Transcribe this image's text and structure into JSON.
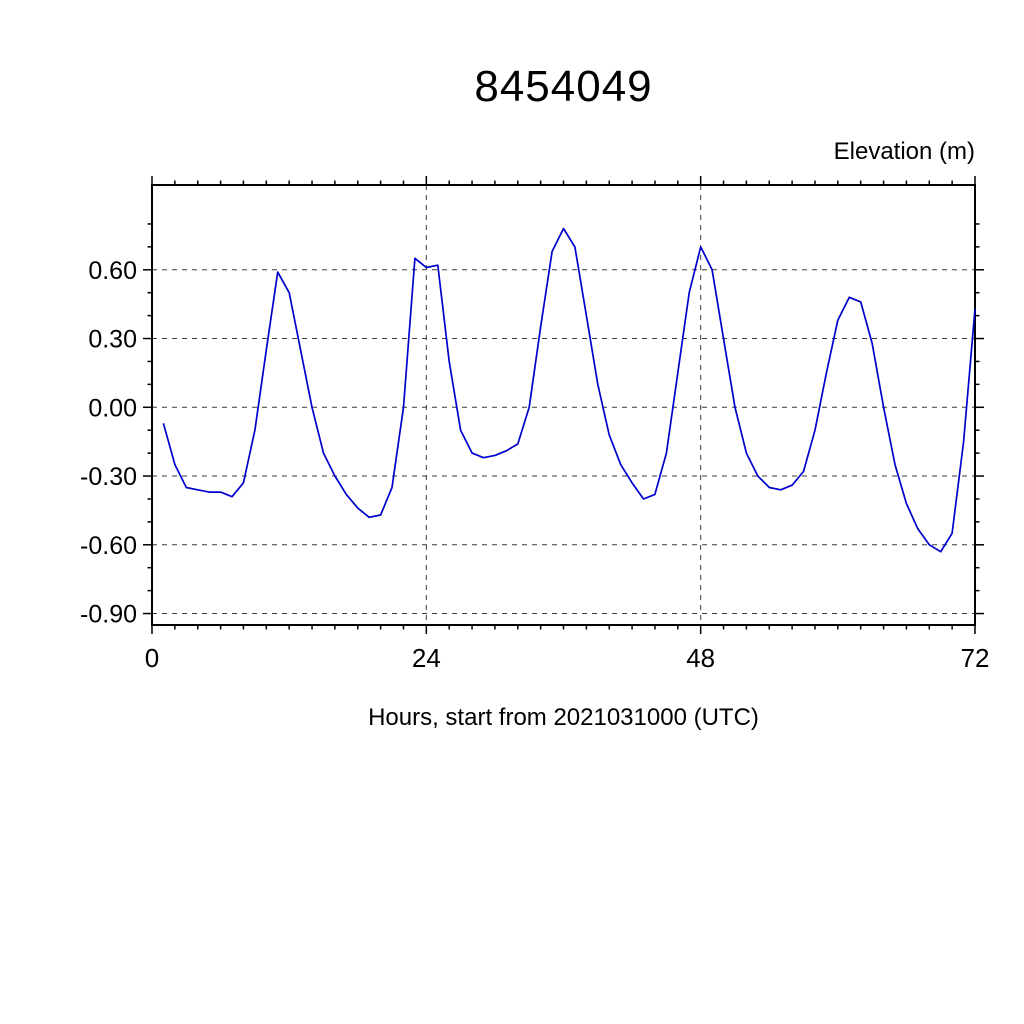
{
  "chart_data": {
    "type": "line",
    "title": "8454049",
    "right_label": "Elevation (m)",
    "xlabel": "Hours, start from 2021031000 (UTC)",
    "line_color": "#0000cd",
    "grid": true,
    "legend": null,
    "xlim": [
      0,
      72
    ],
    "ylim": [
      -0.95,
      0.97
    ],
    "xaxis": {
      "ticks": [
        0,
        24,
        48,
        72
      ],
      "tick_labels": [
        "0",
        "24",
        "48",
        "72"
      ],
      "minor_step": 2
    },
    "yaxis": {
      "ticks": [
        -0.9,
        -0.6,
        -0.3,
        0.0,
        0.3,
        0.6
      ],
      "tick_labels": [
        "-0.90",
        "-0.60",
        "-0.30",
        "0.00",
        "0.30",
        "0.60"
      ],
      "minor_step": 0.1
    },
    "x_gridlines": [
      24,
      48
    ],
    "x": [
      1,
      2,
      3,
      4,
      5,
      6,
      7,
      8,
      9,
      10,
      11,
      12,
      13,
      14,
      15,
      16,
      17,
      18,
      19,
      20,
      21,
      22,
      23,
      24,
      25,
      26,
      27,
      28,
      29,
      30,
      31,
      32,
      33,
      34,
      35,
      36,
      37,
      38,
      39,
      40,
      41,
      42,
      43,
      44,
      45,
      46,
      47,
      48,
      49,
      50,
      51,
      52,
      53,
      54,
      55,
      56,
      57,
      58,
      59,
      60,
      61,
      62,
      63,
      64,
      65,
      66,
      67,
      68,
      69,
      70,
      71,
      72
    ],
    "y": [
      -0.07,
      -0.25,
      -0.35,
      -0.36,
      -0.37,
      -0.37,
      -0.39,
      -0.33,
      -0.1,
      0.25,
      0.59,
      0.5,
      0.25,
      0.0,
      -0.2,
      -0.3,
      -0.38,
      -0.44,
      -0.48,
      -0.47,
      -0.35,
      0.0,
      0.65,
      0.61,
      0.62,
      0.2,
      -0.1,
      -0.2,
      -0.22,
      -0.21,
      -0.19,
      -0.16,
      0.0,
      0.35,
      0.68,
      0.78,
      0.7,
      0.4,
      0.1,
      -0.12,
      -0.25,
      -0.33,
      -0.4,
      -0.38,
      -0.2,
      0.15,
      0.5,
      0.7,
      0.6,
      0.3,
      0.0,
      -0.2,
      -0.3,
      -0.35,
      -0.36,
      -0.34,
      -0.28,
      -0.1,
      0.15,
      0.38,
      0.48,
      0.46,
      0.28,
      0.0,
      -0.25,
      -0.42,
      -0.53,
      -0.6,
      -0.63,
      -0.55,
      -0.15,
      0.43
    ]
  }
}
